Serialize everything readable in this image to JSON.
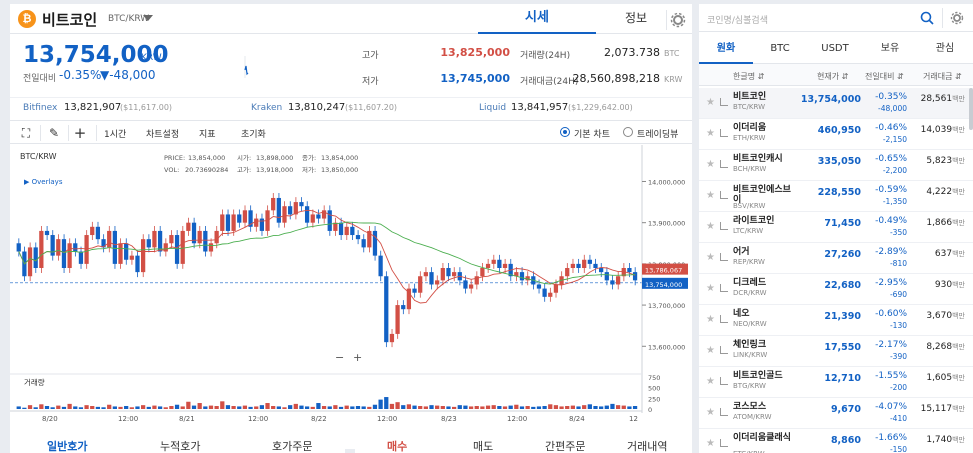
{
  "coin": {
    "logo": "₿",
    "name": "비트코인",
    "pair": "BTC/KRW"
  },
  "tabs": {
    "price": "시세",
    "info": "정보"
  },
  "price": {
    "current": "13,754,000",
    "unit": "KRW",
    "prev_label": "전일대비",
    "rate": "-0.35%",
    "change": "▼-48,000"
  },
  "stats": {
    "high_label": "고가",
    "high": "13,825,000",
    "low_label": "저가",
    "low": "13,745,000",
    "vol_label": "거래량(24H)",
    "vol": "2,073.738",
    "vol_unit": "BTC",
    "amt_label": "거래대금(24H)",
    "amt": "28,560,898,218",
    "amt_unit": "KRW"
  },
  "exchanges": [
    {
      "name": "Bitfinex",
      "value": "13,821,907",
      "sub": "($11,617.00)"
    },
    {
      "name": "Kraken",
      "value": "13,810,247",
      "sub": "($11,607.20)"
    },
    {
      "name": "Liquid",
      "value": "13,841,957",
      "sub": "($1,229,642.00)"
    }
  ],
  "toolbar": {
    "interval": "1시간",
    "chart_settings": "차트설정",
    "indicators": "지표",
    "reset": "초기화",
    "basic_chart": "기본 차트",
    "tradingview": "트레이딩뷰"
  },
  "chart_data": {
    "type": "candlestick",
    "symbol": "BTC/KRW",
    "overlays_label": "Overlays",
    "ohlc_info": {
      "price_label": "PRICE:",
      "price": "13,854,000",
      "open_label": "시가:",
      "open": "13,898,000",
      "close_label": "종가:",
      "close": "13,854,000",
      "vol_label": "VOL:",
      "vol": "20.73690284",
      "high_label": "고가:",
      "high": "13,918,000",
      "low_label": "저가:",
      "low": "13,850,000"
    },
    "y_ticks": [
      "14,000,000",
      "13,900,000",
      "13,800,000",
      "13,700,000",
      "13,600,000"
    ],
    "ylim": [
      13540000,
      14040000
    ],
    "x_ticks": [
      "8/20",
      "12:00",
      "8/21",
      "12:00",
      "8/22",
      "12:00",
      "8/23",
      "12:00",
      "8/24",
      "12"
    ],
    "price_tag_red": "13,786,067",
    "price_tag_blue": "13,754,000",
    "volume_label": "거래량",
    "volume_ticks": [
      "750",
      "500",
      "250",
      "0"
    ],
    "volume_max": 750,
    "closes": [
      13830000,
      13770000,
      13840000,
      13790000,
      13880000,
      13870000,
      13820000,
      13860000,
      13790000,
      13850000,
      13830000,
      13800000,
      13870000,
      13890000,
      13860000,
      13840000,
      13880000,
      13800000,
      13850000,
      13810000,
      13820000,
      13780000,
      13860000,
      13840000,
      13880000,
      13830000,
      13850000,
      13870000,
      13800000,
      13880000,
      13900000,
      13850000,
      13880000,
      13830000,
      13850000,
      13880000,
      13920000,
      13880000,
      13920000,
      13900000,
      13930000,
      13890000,
      13910000,
      13880000,
      13930000,
      13960000,
      13900000,
      13940000,
      13920000,
      13950000,
      13940000,
      13900000,
      13920000,
      13910000,
      13930000,
      13880000,
      13900000,
      13870000,
      13890000,
      13870000,
      13860000,
      13840000,
      13880000,
      13820000,
      13770000,
      13610000,
      13630000,
      13700000,
      13690000,
      13740000,
      13730000,
      13770000,
      13780000,
      13750000,
      13760000,
      13790000,
      13770000,
      13780000,
      13760000,
      13740000,
      13750000,
      13770000,
      13790000,
      13800000,
      13810000,
      13790000,
      13800000,
      13770000,
      13780000,
      13760000,
      13770000,
      13750000,
      13740000,
      13720000,
      13730000,
      13750000,
      13770000,
      13790000,
      13800000,
      13790000,
      13810000,
      13800000,
      13790000,
      13780000,
      13760000,
      13750000,
      13770000,
      13790000,
      13780000,
      13760000
    ],
    "volumes": [
      60,
      30,
      90,
      40,
      110,
      70,
      40,
      80,
      50,
      120,
      60,
      40,
      90,
      70,
      50,
      40,
      100,
      60,
      50,
      70,
      40,
      60,
      90,
      50,
      80,
      60,
      40,
      70,
      100,
      60,
      170,
      80,
      140,
      60,
      80,
      70,
      180,
      90,
      70,
      60,
      80,
      50,
      60,
      90,
      140,
      70,
      60,
      40,
      90,
      120,
      80,
      60,
      50,
      140,
      70,
      60,
      90,
      50,
      80,
      60,
      70,
      60,
      50,
      100,
      220,
      280,
      120,
      160,
      90,
      110,
      80,
      70,
      60,
      90,
      80,
      70,
      60,
      50,
      90,
      80,
      60,
      70,
      60,
      80,
      90,
      70,
      60,
      80,
      100,
      60,
      70,
      50,
      60,
      70,
      110,
      90,
      60,
      70,
      80,
      60,
      90,
      110,
      70,
      60,
      80,
      120,
      90,
      80,
      60,
      70
    ]
  },
  "bottom": {
    "left": [
      "일반호가",
      "누적호가",
      "호가주문"
    ],
    "right": [
      "매수",
      "매도",
      "간편주문",
      "거래내역"
    ]
  },
  "sidebar": {
    "search_placeholder": "코인명/심볼검색",
    "tabs": [
      "원화",
      "BTC",
      "USDT",
      "보유",
      "관심"
    ],
    "headers": [
      "한글명 ⇵",
      "현재가 ⇵",
      "전일대비 ⇵",
      "거래대금 ⇵"
    ],
    "coins": [
      {
        "name": "비트코인",
        "ticker": "BTC/KRW",
        "price": "13,754,000",
        "rate": "-0.35%",
        "diff": "-48,000",
        "vol": "28,561",
        "vol_unit": "백만"
      },
      {
        "name": "이더리움",
        "ticker": "ETH/KRW",
        "price": "460,950",
        "rate": "-0.46%",
        "diff": "-2,150",
        "vol": "14,039",
        "vol_unit": "백만"
      },
      {
        "name": "비트코인캐시",
        "ticker": "BCH/KRW",
        "price": "335,050",
        "rate": "-0.65%",
        "diff": "-2,200",
        "vol": "5,823",
        "vol_unit": "백만"
      },
      {
        "name": "비트코인에스브이",
        "ticker": "BSV/KRW",
        "price": "228,550",
        "rate": "-0.59%",
        "diff": "-1,350",
        "vol": "4,222",
        "vol_unit": "백만"
      },
      {
        "name": "라이트코인",
        "ticker": "LTC/KRW",
        "price": "71,450",
        "rate": "-0.49%",
        "diff": "-350",
        "vol": "1,866",
        "vol_unit": "백만"
      },
      {
        "name": "어거",
        "ticker": "REP/KRW",
        "price": "27,260",
        "rate": "-2.89%",
        "diff": "-810",
        "vol": "637",
        "vol_unit": "백만"
      },
      {
        "name": "디크레드",
        "ticker": "DCR/KRW",
        "price": "22,680",
        "rate": "-2.95%",
        "diff": "-690",
        "vol": "930",
        "vol_unit": "백만"
      },
      {
        "name": "네오",
        "ticker": "NEO/KRW",
        "price": "21,390",
        "rate": "-0.60%",
        "diff": "-130",
        "vol": "3,670",
        "vol_unit": "백만"
      },
      {
        "name": "체인링크",
        "ticker": "LINK/KRW",
        "price": "17,550",
        "rate": "-2.17%",
        "diff": "-390",
        "vol": "8,268",
        "vol_unit": "백만"
      },
      {
        "name": "비트코인골드",
        "ticker": "BTG/KRW",
        "price": "12,710",
        "rate": "-1.55%",
        "diff": "-200",
        "vol": "1,605",
        "vol_unit": "백만"
      },
      {
        "name": "코스모스",
        "ticker": "ATOM/KRW",
        "price": "9,670",
        "rate": "-4.07%",
        "diff": "-410",
        "vol": "15,117",
        "vol_unit": "백만"
      },
      {
        "name": "이더리움클래식",
        "ticker": "ETC/KRW",
        "price": "8,860",
        "rate": "-1.66%",
        "diff": "-150",
        "vol": "1,740",
        "vol_unit": "백만"
      }
    ]
  },
  "colors": {
    "up": "#d24f45",
    "down": "#1261c4",
    "ma_red": "#d24f45",
    "ma_green": "#4caf50"
  }
}
